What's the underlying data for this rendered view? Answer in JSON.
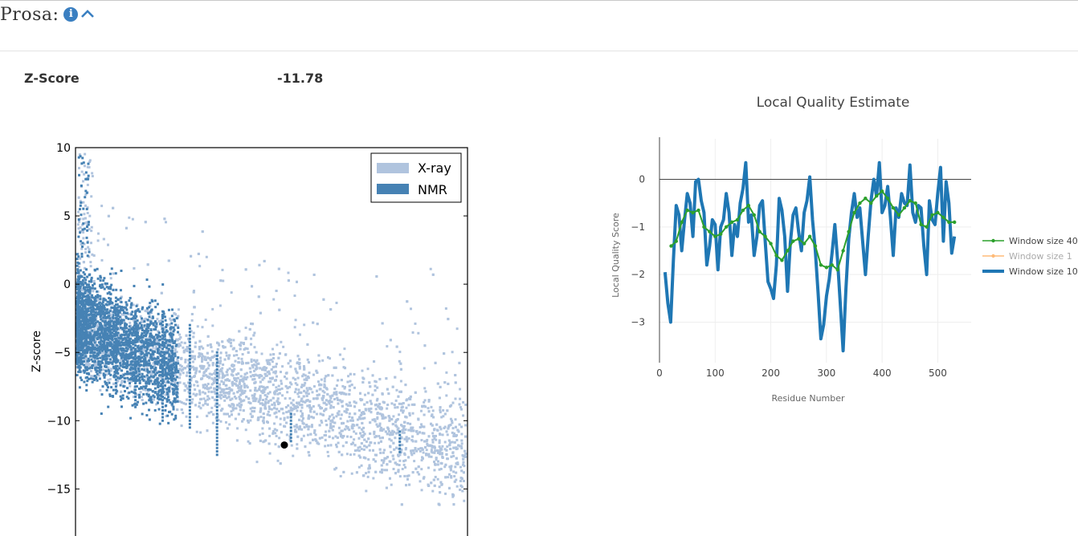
{
  "section": {
    "title": "Prosa:",
    "info_icon": "info-icon",
    "collapse_icon": "chevron-up-icon"
  },
  "zscore": {
    "label": "Z-Score",
    "value": "-11.78"
  },
  "chart_data": [
    {
      "type": "scatter",
      "title": "",
      "xlabel": "",
      "ylabel": "Z-score",
      "ylim": [
        -18.8,
        10
      ],
      "yticks": [
        10,
        5,
        0,
        -5,
        -10,
        -15
      ],
      "ytick_labels": [
        "10",
        "5",
        "0",
        "−5",
        "−10",
        "−15"
      ],
      "legend": {
        "placement": "top-right",
        "entries": [
          "X-ray",
          "NMR"
        ]
      },
      "series": [
        {
          "name": "X-ray",
          "color": "#b0c4de",
          "description": "dense cloud of reference structures, roughly centered from about -2 at small size to about -12 at large size"
        },
        {
          "name": "NMR",
          "color": "#4682b4",
          "description": "dense cloud at small size between about 0 and -9"
        }
      ],
      "highlight": {
        "y": -11.78,
        "color": "#000000"
      }
    },
    {
      "type": "line",
      "title": "Local Quality Estimate",
      "xlabel": "Residue Number",
      "ylabel": "Local Quality Score",
      "xlim": [
        0,
        560
      ],
      "ylim": [
        -3.85,
        0.85
      ],
      "xticks": [
        0,
        100,
        200,
        300,
        400,
        500
      ],
      "yticks": [
        0,
        -1,
        -2,
        -3
      ],
      "legend": {
        "placement": "right"
      },
      "series": [
        {
          "name": "Window size 40",
          "color": "#2ca02c",
          "x": [
            21,
            30,
            40,
            50,
            60,
            70,
            80,
            90,
            100,
            110,
            120,
            130,
            140,
            150,
            160,
            170,
            180,
            190,
            200,
            210,
            220,
            230,
            240,
            250,
            260,
            270,
            280,
            290,
            300,
            310,
            320,
            330,
            340,
            350,
            360,
            370,
            380,
            390,
            400,
            410,
            420,
            430,
            440,
            450,
            460,
            470,
            480,
            490,
            500,
            510,
            520,
            530
          ],
          "y": [
            -1.4,
            -1.3,
            -0.9,
            -0.65,
            -0.7,
            -0.65,
            -1.0,
            -1.1,
            -1.2,
            -1.15,
            -1.0,
            -0.9,
            -0.85,
            -0.65,
            -0.55,
            -0.75,
            -1.1,
            -1.2,
            -1.35,
            -1.6,
            -1.7,
            -1.5,
            -1.3,
            -1.25,
            -1.35,
            -1.2,
            -1.4,
            -1.8,
            -1.85,
            -1.8,
            -1.9,
            -1.5,
            -1.1,
            -0.7,
            -0.5,
            -0.4,
            -0.5,
            -0.35,
            -0.25,
            -0.4,
            -0.6,
            -0.75,
            -0.6,
            -0.45,
            -0.5,
            -0.95,
            -1.0,
            -0.75,
            -0.7,
            -0.8,
            -0.9,
            -0.9
          ]
        },
        {
          "name": "Window size 1",
          "color": "#ffbb78",
          "x": [],
          "y": []
        },
        {
          "name": "Window size 10",
          "color": "#1f77b4",
          "x": [
            10,
            15,
            20,
            25,
            30,
            35,
            40,
            45,
            50,
            55,
            60,
            65,
            70,
            75,
            80,
            85,
            90,
            95,
            100,
            105,
            110,
            115,
            120,
            125,
            130,
            135,
            140,
            145,
            150,
            155,
            160,
            165,
            170,
            175,
            180,
            185,
            190,
            195,
            200,
            205,
            210,
            215,
            220,
            225,
            230,
            235,
            240,
            245,
            250,
            255,
            260,
            265,
            270,
            275,
            280,
            285,
            290,
            295,
            300,
            305,
            310,
            315,
            320,
            325,
            330,
            335,
            340,
            345,
            350,
            355,
            360,
            365,
            370,
            375,
            380,
            385,
            390,
            395,
            400,
            405,
            410,
            415,
            420,
            425,
            430,
            435,
            440,
            445,
            450,
            455,
            460,
            465,
            470,
            475,
            480,
            485,
            490,
            495,
            500,
            505,
            510,
            515,
            520,
            525,
            530
          ],
          "y": [
            -1.95,
            -2.6,
            -3.0,
            -1.7,
            -0.55,
            -0.75,
            -1.5,
            -0.85,
            -0.3,
            -0.5,
            -1.2,
            -0.05,
            0.0,
            -0.45,
            -0.7,
            -1.8,
            -1.4,
            -0.85,
            -0.95,
            -1.9,
            -1.0,
            -0.85,
            -0.3,
            -0.7,
            -1.6,
            -0.95,
            -1.2,
            -0.5,
            -0.2,
            0.35,
            -0.9,
            -0.75,
            -1.6,
            -1.2,
            -0.55,
            -0.45,
            -1.3,
            -2.15,
            -2.3,
            -2.5,
            -1.8,
            -0.4,
            -0.65,
            -1.2,
            -2.35,
            -1.35,
            -0.75,
            -0.6,
            -1.1,
            -1.5,
            -0.7,
            -0.45,
            0.05,
            -0.85,
            -1.5,
            -2.4,
            -3.35,
            -3.05,
            -2.45,
            -2.1,
            -1.55,
            -0.95,
            -1.7,
            -2.65,
            -3.6,
            -2.3,
            -1.25,
            -0.7,
            -0.3,
            -0.8,
            -0.6,
            -1.3,
            -2.0,
            -1.2,
            -0.45,
            0.0,
            -0.35,
            0.35,
            -0.7,
            -0.55,
            -0.15,
            -0.8,
            -1.6,
            -0.6,
            -0.8,
            -0.3,
            -0.5,
            -0.55,
            0.3,
            -0.7,
            -0.9,
            -0.55,
            -0.6,
            -1.4,
            -2.0,
            -0.45,
            -0.85,
            -0.95,
            -0.3,
            0.25,
            -1.3,
            -0.05,
            -0.5,
            -1.55,
            -1.2
          ]
        }
      ]
    }
  ]
}
